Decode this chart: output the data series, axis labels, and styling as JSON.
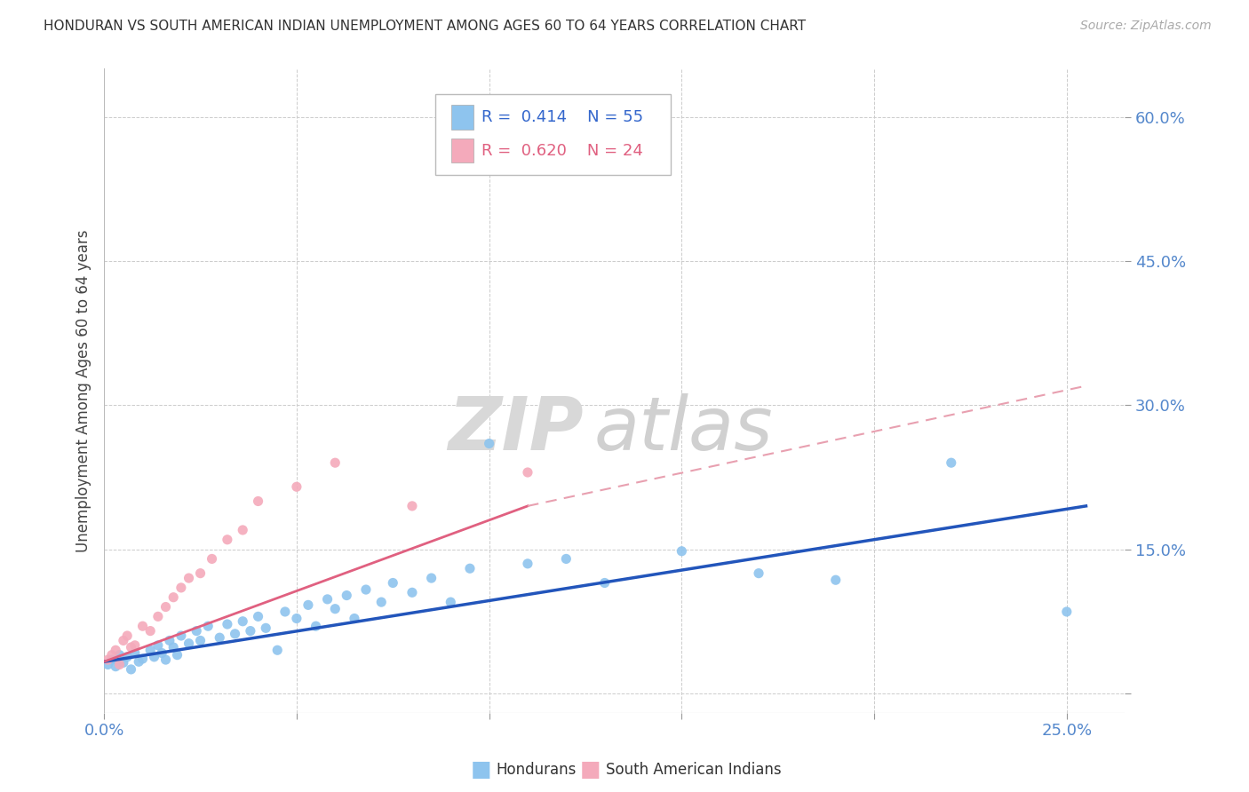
{
  "title": "HONDURAN VS SOUTH AMERICAN INDIAN UNEMPLOYMENT AMONG AGES 60 TO 64 YEARS CORRELATION CHART",
  "source": "Source: ZipAtlas.com",
  "ylabel": "Unemployment Among Ages 60 to 64 years",
  "xlim": [
    0.0,
    0.265
  ],
  "ylim": [
    -0.02,
    0.65
  ],
  "xtick_positions": [
    0.0,
    0.05,
    0.1,
    0.15,
    0.2,
    0.25
  ],
  "xtick_labels": [
    "0.0%",
    "",
    "",
    "",
    "",
    "25.0%"
  ],
  "ytick_positions": [
    0.0,
    0.15,
    0.3,
    0.45,
    0.6
  ],
  "ytick_labels": [
    "",
    "15.0%",
    "30.0%",
    "45.0%",
    "60.0%"
  ],
  "background_color": "#ffffff",
  "watermark_zip": "ZIP",
  "watermark_atlas": "atlas",
  "honduran_color": "#8ec4ee",
  "sai_color": "#f4aabb",
  "trendline_honduran_color": "#2255bb",
  "trendline_sai_solid_color": "#e06080",
  "trendline_sai_dash_color": "#e8a0b0",
  "dot_size": 65,
  "honduran_x": [
    0.001,
    0.002,
    0.003,
    0.004,
    0.005,
    0.006,
    0.007,
    0.008,
    0.009,
    0.01,
    0.012,
    0.013,
    0.014,
    0.015,
    0.016,
    0.017,
    0.018,
    0.019,
    0.02,
    0.022,
    0.024,
    0.025,
    0.027,
    0.03,
    0.032,
    0.034,
    0.036,
    0.038,
    0.04,
    0.042,
    0.045,
    0.047,
    0.05,
    0.053,
    0.055,
    0.058,
    0.06,
    0.063,
    0.065,
    0.068,
    0.072,
    0.075,
    0.08,
    0.085,
    0.09,
    0.095,
    0.1,
    0.11,
    0.12,
    0.13,
    0.15,
    0.17,
    0.19,
    0.22,
    0.25
  ],
  "honduran_y": [
    0.03,
    0.035,
    0.028,
    0.04,
    0.032,
    0.038,
    0.025,
    0.042,
    0.033,
    0.036,
    0.045,
    0.038,
    0.05,
    0.042,
    0.035,
    0.055,
    0.048,
    0.04,
    0.06,
    0.052,
    0.065,
    0.055,
    0.07,
    0.058,
    0.072,
    0.062,
    0.075,
    0.065,
    0.08,
    0.068,
    0.045,
    0.085,
    0.078,
    0.092,
    0.07,
    0.098,
    0.088,
    0.102,
    0.078,
    0.108,
    0.095,
    0.115,
    0.105,
    0.12,
    0.095,
    0.13,
    0.26,
    0.135,
    0.14,
    0.115,
    0.148,
    0.125,
    0.118,
    0.24,
    0.085
  ],
  "sai_x": [
    0.001,
    0.002,
    0.003,
    0.004,
    0.005,
    0.006,
    0.007,
    0.008,
    0.01,
    0.012,
    0.014,
    0.016,
    0.018,
    0.02,
    0.022,
    0.025,
    0.028,
    0.032,
    0.036,
    0.04,
    0.05,
    0.06,
    0.08,
    0.11
  ],
  "sai_y": [
    0.035,
    0.04,
    0.045,
    0.03,
    0.055,
    0.06,
    0.048,
    0.05,
    0.07,
    0.065,
    0.08,
    0.09,
    0.1,
    0.11,
    0.12,
    0.125,
    0.14,
    0.16,
    0.17,
    0.2,
    0.215,
    0.24,
    0.195,
    0.23
  ],
  "honduran_trend_x0": 0.0,
  "honduran_trend_y0": 0.033,
  "honduran_trend_x1": 0.255,
  "honduran_trend_y1": 0.195,
  "sai_trend_x0": 0.0,
  "sai_trend_y0": 0.033,
  "sai_trend_xdata_end": 0.11,
  "sai_trend_ydata_end": 0.195,
  "sai_trend_x1": 0.255,
  "sai_trend_y1": 0.32
}
